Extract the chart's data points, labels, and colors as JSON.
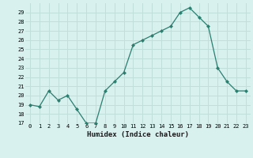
{
  "x": [
    0,
    1,
    2,
    3,
    4,
    5,
    6,
    7,
    8,
    9,
    10,
    11,
    12,
    13,
    14,
    15,
    16,
    17,
    18,
    19,
    20,
    21,
    22,
    23
  ],
  "y": [
    19.0,
    18.8,
    20.5,
    19.5,
    20.0,
    18.5,
    17.0,
    17.0,
    20.5,
    21.5,
    22.5,
    25.5,
    26.0,
    26.5,
    27.0,
    27.5,
    29.0,
    29.5,
    28.5,
    27.5,
    23.0,
    21.5,
    20.5,
    20.5
  ],
  "xlabel": "Humidex (Indice chaleur)",
  "ylim": [
    17,
    30
  ],
  "xlim": [
    -0.5,
    23.5
  ],
  "yticks": [
    17,
    18,
    19,
    20,
    21,
    22,
    23,
    24,
    25,
    26,
    27,
    28,
    29
  ],
  "xtick_labels": [
    "0",
    "1",
    "2",
    "3",
    "4",
    "5",
    "6",
    "7",
    "8",
    "9",
    "10",
    "11",
    "12",
    "13",
    "14",
    "15",
    "16",
    "17",
    "18",
    "19",
    "20",
    "21",
    "22",
    "23"
  ],
  "line_color": "#2a7f6f",
  "bg_color": "#d8f0ee",
  "grid_color": "#c0deda",
  "tick_fontsize": 5.0,
  "xlabel_fontsize": 6.5
}
